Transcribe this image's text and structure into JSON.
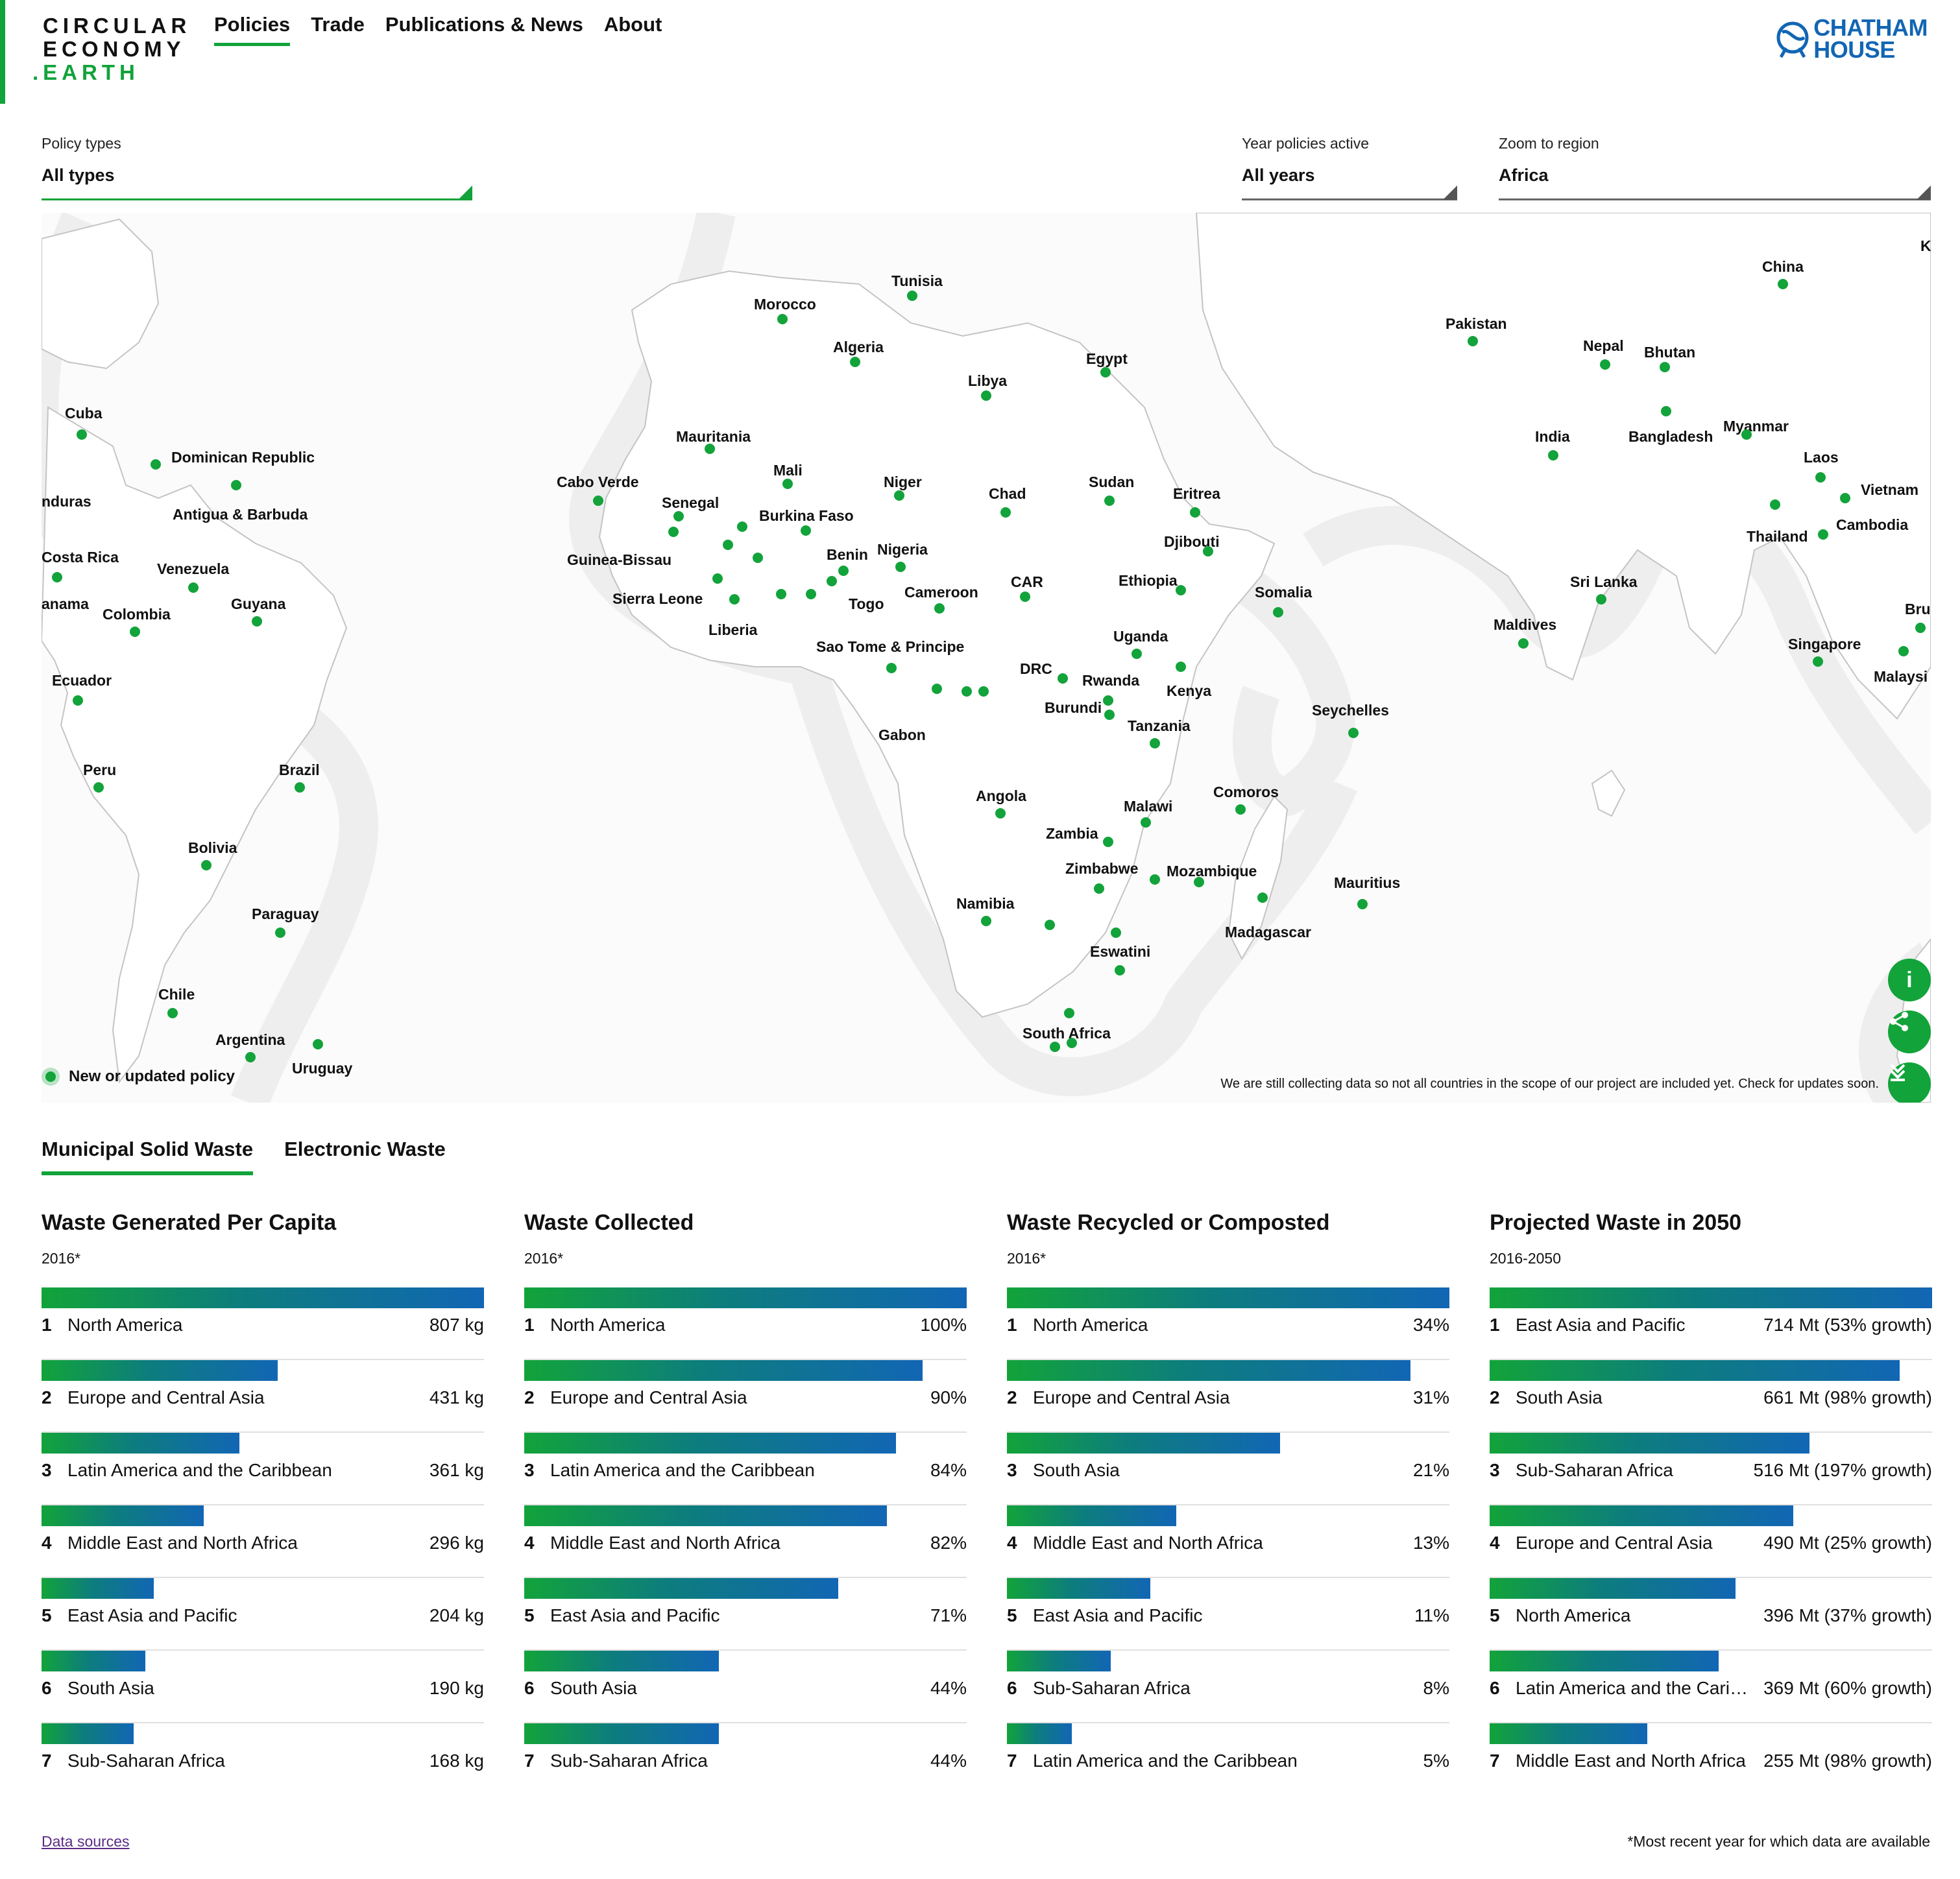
{
  "header": {
    "logo_line1": "CIRCULAR",
    "logo_line2": "ECONOMY",
    "logo_line3": ".EARTH",
    "nav": [
      "Policies",
      "Trade",
      "Publications & News",
      "About"
    ],
    "partner_line1": "CHATHAM",
    "partner_line2": "HOUSE"
  },
  "filters": {
    "types_label": "Policy types",
    "types_value": "All types",
    "year_label": "Year policies active",
    "year_value": "All years",
    "region_label": "Zoom to region",
    "region_value": "Africa"
  },
  "map": {
    "legend": "New or updated policy",
    "note": "We are still collecting data so not all countries in the scope of our project are included yet. Check for updates soon.",
    "labels": [
      "Tunisia",
      "Morocco",
      "Algeria",
      "Libya",
      "Egypt",
      "Mauritania",
      "Mali",
      "Niger",
      "Chad",
      "Sudan",
      "Eritrea",
      "Djibouti",
      "Cabo Verde",
      "Senegal",
      "Burkina Faso",
      "Guinea-Bissau",
      "Benin",
      "Nigeria",
      "Sierra Leone",
      "Togo",
      "Liberia",
      "Cameroon",
      "CAR",
      "Ethiopia",
      "Somalia",
      "Sao Tome & Principe",
      "Uganda",
      "DRC",
      "Rwanda",
      "Kenya",
      "Burundi",
      "Gabon",
      "Tanzania",
      "Seychelles",
      "Comoros",
      "Angola",
      "Malawi",
      "Zambia",
      "Zimbabwe",
      "Mozambique",
      "Mauritius",
      "Namibia",
      "Madagascar",
      "Eswatini",
      "South Africa",
      "Cuba",
      "Dominican Republic",
      "nduras",
      "Antigua & Barbuda",
      "Costa Rica",
      "Venezuela",
      "anama",
      "Colombia",
      "Guyana",
      "Ecuador",
      "Peru",
      "Brazil",
      "Bolivia",
      "Paraguay",
      "Chile",
      "Argentina",
      "Uruguay",
      "China",
      "Pakistan",
      "Nepal",
      "Bhutan",
      "India",
      "Bangladesh",
      "Myanmar",
      "Laos",
      "Vietnam",
      "Thailand",
      "Cambodia",
      "Sri Lanka",
      "Maldives",
      "Singapore",
      "Malaysi",
      "Bru",
      "K"
    ]
  },
  "tabs": [
    "Municipal Solid Waste",
    "Electronic Waste"
  ],
  "panels": [
    {
      "title": "Waste Generated Per Capita",
      "subtitle": "2016*",
      "rows": [
        {
          "rank": "1",
          "name": "North America",
          "value": "807 kg",
          "share": 1.0
        },
        {
          "rank": "2",
          "name": "Europe and Central Asia",
          "value": "431 kg",
          "share": 0.534
        },
        {
          "rank": "3",
          "name": "Latin America and the Caribbean",
          "value": "361 kg",
          "share": 0.447
        },
        {
          "rank": "4",
          "name": "Middle East and North Africa",
          "value": "296 kg",
          "share": 0.367
        },
        {
          "rank": "5",
          "name": "East Asia and Pacific",
          "value": "204 kg",
          "share": 0.253
        },
        {
          "rank": "6",
          "name": "South Asia",
          "value": "190 kg",
          "share": 0.235
        },
        {
          "rank": "7",
          "name": "Sub-Saharan Africa",
          "value": "168 kg",
          "share": 0.208
        }
      ]
    },
    {
      "title": "Waste Collected",
      "subtitle": "2016*",
      "rows": [
        {
          "rank": "1",
          "name": "North America",
          "value": "100%",
          "share": 1.0
        },
        {
          "rank": "2",
          "name": "Europe and Central Asia",
          "value": "90%",
          "share": 0.9
        },
        {
          "rank": "3",
          "name": "Latin America and the Caribbean",
          "value": "84%",
          "share": 0.84
        },
        {
          "rank": "4",
          "name": "Middle East and North Africa",
          "value": "82%",
          "share": 0.82
        },
        {
          "rank": "5",
          "name": "East Asia and Pacific",
          "value": "71%",
          "share": 0.71
        },
        {
          "rank": "6",
          "name": "South Asia",
          "value": "44%",
          "share": 0.44
        },
        {
          "rank": "7",
          "name": "Sub-Saharan Africa",
          "value": "44%",
          "share": 0.44
        }
      ]
    },
    {
      "title": "Waste Recycled or Composted",
      "subtitle": "2016*",
      "rows": [
        {
          "rank": "1",
          "name": "North America",
          "value": "34%",
          "share": 1.0
        },
        {
          "rank": "2",
          "name": "Europe and Central Asia",
          "value": "31%",
          "share": 0.912
        },
        {
          "rank": "3",
          "name": "South Asia",
          "value": "21%",
          "share": 0.618
        },
        {
          "rank": "4",
          "name": "Middle East and North Africa",
          "value": "13%",
          "share": 0.382
        },
        {
          "rank": "5",
          "name": "East Asia and Pacific",
          "value": "11%",
          "share": 0.324
        },
        {
          "rank": "6",
          "name": "Sub-Saharan Africa",
          "value": "8%",
          "share": 0.235
        },
        {
          "rank": "7",
          "name": "Latin America and the Caribbean",
          "value": "5%",
          "share": 0.147
        }
      ]
    },
    {
      "title": "Projected Waste in 2050",
      "subtitle": "2016-2050",
      "rows": [
        {
          "rank": "1",
          "name": "East Asia and Pacific",
          "value": "714 Mt (53% growth)",
          "share": 1.0
        },
        {
          "rank": "2",
          "name": "South Asia",
          "value": "661 Mt (98% growth)",
          "share": 0.926
        },
        {
          "rank": "3",
          "name": "Sub-Saharan Africa",
          "value": "516 Mt (197% growth)",
          "share": 0.723
        },
        {
          "rank": "4",
          "name": "Europe and Central Asia",
          "value": "490 Mt (25% growth)",
          "share": 0.686
        },
        {
          "rank": "5",
          "name": "North America",
          "value": "396 Mt (37% growth)",
          "share": 0.555
        },
        {
          "rank": "6",
          "name": "Latin America and the Caribbean",
          "value": "369 Mt (60% growth)",
          "share": 0.517
        },
        {
          "rank": "7",
          "name": "Middle East and North Africa",
          "value": "255 Mt (98% growth)",
          "share": 0.357
        }
      ]
    }
  ],
  "footer": {
    "link": "Data sources",
    "note": "*Most recent year for which data are available"
  }
}
